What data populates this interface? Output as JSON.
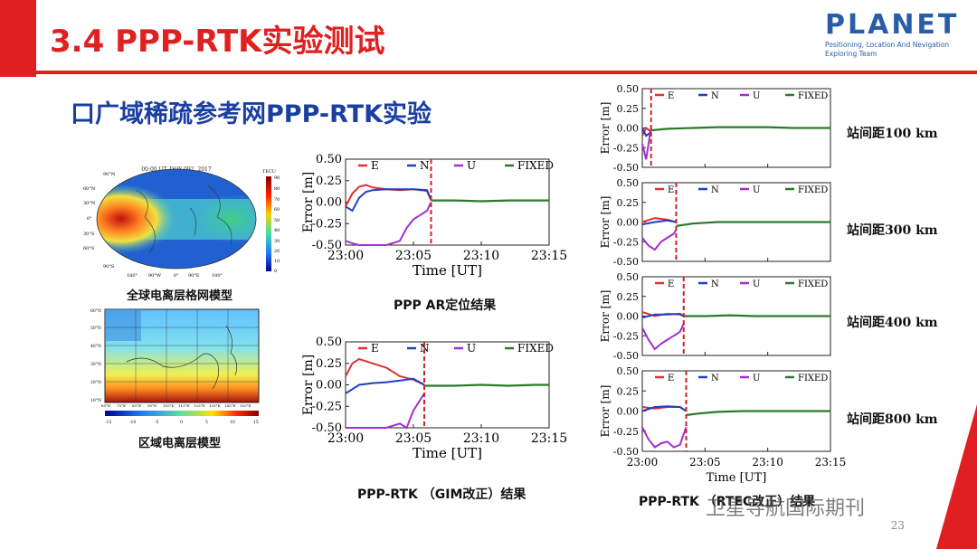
{
  "header": {
    "title": "3.4 PPP-RTK实验测试",
    "logo_word": "PLANET",
    "logo_line1": "Positioning, Location And Nevigation",
    "logo_line2": "Exploring Team"
  },
  "subtitle": "口广域稀疏参考网PPP-RTK实验",
  "left_maps": {
    "global_title": "00:00 UT, DOY 092, 2017",
    "global_unit": "TECU",
    "global_caption": "全球电离层格网模型",
    "regional_caption": "区域电离层模型",
    "global_lat_labels": [
      "90°N",
      "60°N",
      "30°N",
      "0°",
      "30°S",
      "60°S",
      "90°S"
    ],
    "global_lon_labels": [
      "180°",
      "90°W",
      "0°",
      "90°E",
      "180°"
    ],
    "global_cbar_ticks": [
      "90",
      "80",
      "70",
      "60",
      "50",
      "40",
      "30",
      "20",
      "10",
      "0"
    ],
    "regional_lat_labels": [
      "60°N",
      "50°N",
      "40°N",
      "30°N",
      "20°N",
      "10°N"
    ],
    "regional_lon_labels": [
      "65°E",
      "75°E",
      "85°E",
      "95°E",
      "105°E",
      "115°E",
      "125°E",
      "135°E",
      "145°E",
      "155°E"
    ],
    "regional_cbar_ticks": [
      "-15",
      "-10",
      "-5",
      "0",
      "5",
      "10",
      "15"
    ]
  },
  "mid_charts": {
    "caption_top": "PPP AR定位结果",
    "caption_bottom": "PPP-RTK （GIM改正）结果"
  },
  "right_charts": {
    "caption": "PPP-RTK （RTEC改正）结果",
    "distances": [
      "站间距100 km",
      "站间距300 km",
      "站间距400 km",
      "站间距800 km"
    ]
  },
  "watermark": "卫星导航国际期刊",
  "page_number": "23",
  "colors": {
    "accent_red": "#e02020",
    "title_blue": "#1a3fa0",
    "E": "#e03030",
    "N": "#2040c0",
    "U": "#a030d0",
    "FIXED": "#2a7a2a"
  },
  "chart_data": [
    {
      "type": "line",
      "name_key": "ppp_ar",
      "xlabel": "Time [UT]",
      "ylabel": "Error [m]",
      "ylim": [
        -0.5,
        0.5
      ],
      "yticks": [
        "0.50",
        "0.25",
        "0.00",
        "-0.25",
        "-0.50"
      ],
      "x_ticks": [
        "23:00",
        "23:05",
        "23:10",
        "23:15"
      ],
      "legend": [
        "E",
        "N",
        "U",
        "FIXED"
      ],
      "fix_time_min": 6.3,
      "series": [
        {
          "name": "E",
          "x": [
            0,
            0.5,
            1,
            1.5,
            2,
            3,
            4,
            5,
            6,
            6.3
          ],
          "y": [
            -0.05,
            0.1,
            0.18,
            0.2,
            0.17,
            0.15,
            0.14,
            0.15,
            0.13,
            0.02
          ]
        },
        {
          "name": "N",
          "x": [
            0,
            0.5,
            1,
            1.5,
            2,
            3,
            4,
            5,
            6,
            6.3
          ],
          "y": [
            -0.05,
            -0.1,
            0.05,
            0.12,
            0.14,
            0.15,
            0.15,
            0.15,
            0.14,
            0.03
          ]
        },
        {
          "name": "U",
          "x": [
            0,
            0.5,
            1,
            2,
            3,
            4,
            4.5,
            5,
            5.5,
            6,
            6.3
          ],
          "y": [
            -0.45,
            -0.48,
            -0.5,
            -0.5,
            -0.5,
            -0.45,
            -0.3,
            -0.2,
            -0.15,
            -0.1,
            0.0
          ]
        },
        {
          "name": "FIXED",
          "x": [
            6.3,
            8,
            10,
            12,
            14,
            15
          ],
          "y": [
            0.02,
            0.02,
            0.01,
            0.02,
            0.02,
            0.02
          ]
        }
      ]
    },
    {
      "type": "line",
      "name_key": "ppp_rtk_gim",
      "xlabel": "Time [UT]",
      "ylabel": "Error [m]",
      "ylim": [
        -0.5,
        0.5
      ],
      "yticks": [
        "0.50",
        "0.25",
        "0.00",
        "-0.25",
        "-0.50"
      ],
      "x_ticks": [
        "23:00",
        "23:05",
        "23:10",
        "23:15"
      ],
      "legend": [
        "E",
        "N",
        "U",
        "FIXED"
      ],
      "fix_time_min": 5.8,
      "series": [
        {
          "name": "E",
          "x": [
            0,
            0.5,
            1,
            2,
            3,
            4,
            5,
            5.8
          ],
          "y": [
            0.1,
            0.25,
            0.3,
            0.25,
            0.2,
            0.1,
            0.06,
            0.0
          ]
        },
        {
          "name": "N",
          "x": [
            0,
            0.5,
            1,
            2,
            3,
            4,
            5,
            5.8
          ],
          "y": [
            -0.1,
            -0.05,
            0.0,
            0.02,
            0.03,
            0.05,
            0.07,
            0.0
          ]
        },
        {
          "name": "U",
          "x": [
            0,
            0.5,
            1,
            2,
            3,
            4,
            4.5,
            5,
            5.8
          ],
          "y": [
            -0.5,
            -0.5,
            -0.5,
            -0.5,
            -0.5,
            -0.45,
            -0.5,
            -0.3,
            -0.1
          ]
        },
        {
          "name": "FIXED",
          "x": [
            5.8,
            8,
            10,
            12,
            14,
            15
          ],
          "y": [
            -0.01,
            -0.01,
            0.0,
            -0.01,
            0.0,
            0.0
          ]
        }
      ]
    },
    {
      "type": "line",
      "name_key": "rtec_100km",
      "ylabel": "Error [m]",
      "ylim": [
        -0.5,
        0.5
      ],
      "yticks": [
        "0.50",
        "0.25",
        "0.00",
        "-0.25",
        "-0.50"
      ],
      "legend": [
        "E",
        "N",
        "U",
        "FIXED"
      ],
      "fix_time_min": 0.7,
      "series": [
        {
          "name": "E",
          "x": [
            0,
            0.3,
            0.7
          ],
          "y": [
            -0.1,
            0.0,
            -0.05
          ]
        },
        {
          "name": "N",
          "x": [
            0,
            0.3,
            0.7
          ],
          "y": [
            0.0,
            -0.1,
            -0.05
          ]
        },
        {
          "name": "U",
          "x": [
            0,
            0.3,
            0.6,
            0.7
          ],
          "y": [
            -0.2,
            -0.4,
            -0.1,
            0.0
          ]
        },
        {
          "name": "FIXED",
          "x": [
            0.7,
            2,
            4,
            6,
            8,
            10,
            12,
            15
          ],
          "y": [
            -0.03,
            -0.01,
            0.0,
            0.01,
            0.01,
            0.01,
            0.0,
            0.0
          ]
        }
      ]
    },
    {
      "type": "line",
      "name_key": "rtec_300km",
      "ylabel": "Error [m]",
      "ylim": [
        -0.5,
        0.5
      ],
      "yticks": [
        "0.50",
        "0.25",
        "0.00",
        "-0.25",
        "-0.50"
      ],
      "legend": [
        "E",
        "N",
        "U",
        "FIXED"
      ],
      "fix_time_min": 2.7,
      "series": [
        {
          "name": "E",
          "x": [
            0,
            1,
            2,
            2.7
          ],
          "y": [
            0.0,
            0.05,
            0.03,
            0.0
          ]
        },
        {
          "name": "N",
          "x": [
            0,
            1,
            2,
            2.7
          ],
          "y": [
            -0.03,
            0.0,
            0.02,
            0.0
          ]
        },
        {
          "name": "U",
          "x": [
            0,
            0.5,
            1,
            1.5,
            2,
            2.5,
            2.7
          ],
          "y": [
            -0.2,
            -0.3,
            -0.35,
            -0.25,
            -0.2,
            -0.15,
            -0.1
          ]
        },
        {
          "name": "FIXED",
          "x": [
            2.7,
            4,
            6,
            8,
            10,
            12,
            15
          ],
          "y": [
            -0.05,
            -0.02,
            0.0,
            0.0,
            0.0,
            0.0,
            0.0
          ]
        }
      ]
    },
    {
      "type": "line",
      "name_key": "rtec_400km",
      "ylabel": "Error [m]",
      "ylim": [
        -0.5,
        0.5
      ],
      "yticks": [
        "0.50",
        "0.25",
        "0.00",
        "-0.25",
        "-0.50"
      ],
      "legend": [
        "E",
        "N",
        "U",
        "FIXED"
      ],
      "fix_time_min": 3.3,
      "series": [
        {
          "name": "E",
          "x": [
            0,
            1,
            2,
            3,
            3.3
          ],
          "y": [
            0.05,
            0.0,
            0.03,
            0.02,
            0.0
          ]
        },
        {
          "name": "N",
          "x": [
            0,
            1,
            2,
            3,
            3.3
          ],
          "y": [
            -0.02,
            0.02,
            0.02,
            0.03,
            0.0
          ]
        },
        {
          "name": "U",
          "x": [
            0,
            0.5,
            1,
            1.5,
            2,
            2.5,
            3,
            3.3
          ],
          "y": [
            -0.15,
            -0.3,
            -0.42,
            -0.35,
            -0.3,
            -0.25,
            -0.2,
            -0.1
          ]
        },
        {
          "name": "FIXED",
          "x": [
            3.3,
            5,
            7,
            9,
            11,
            13,
            15
          ],
          "y": [
            0.0,
            0.0,
            0.01,
            0.0,
            0.0,
            0.0,
            0.0
          ]
        }
      ]
    },
    {
      "type": "line",
      "name_key": "rtec_800km",
      "ylabel": "Error [m]",
      "xlabel": "Time [UT]",
      "ylim": [
        -0.5,
        0.5
      ],
      "yticks": [
        "0.50",
        "0.25",
        "0.00",
        "-0.25",
        "-0.50"
      ],
      "x_ticks": [
        "23:00",
        "23:05",
        "23:10",
        "23:15"
      ],
      "legend": [
        "E",
        "N",
        "U",
        "FIXED"
      ],
      "fix_time_min": 3.5,
      "series": [
        {
          "name": "E",
          "x": [
            0,
            1,
            2,
            3,
            3.5
          ],
          "y": [
            0.05,
            0.03,
            0.05,
            0.05,
            0.0
          ]
        },
        {
          "name": "N",
          "x": [
            0,
            1,
            2,
            3,
            3.5
          ],
          "y": [
            0.0,
            0.05,
            0.06,
            0.05,
            0.0
          ]
        },
        {
          "name": "U",
          "x": [
            0,
            0.5,
            1,
            1.5,
            2,
            2.5,
            3,
            3.5
          ],
          "y": [
            -0.2,
            -0.35,
            -0.45,
            -0.4,
            -0.38,
            -0.45,
            -0.42,
            -0.2
          ]
        },
        {
          "name": "FIXED",
          "x": [
            3.5,
            4.5,
            6,
            8,
            10,
            12,
            15
          ],
          "y": [
            -0.05,
            -0.03,
            -0.01,
            0.0,
            0.0,
            0.0,
            0.0
          ]
        }
      ]
    }
  ]
}
